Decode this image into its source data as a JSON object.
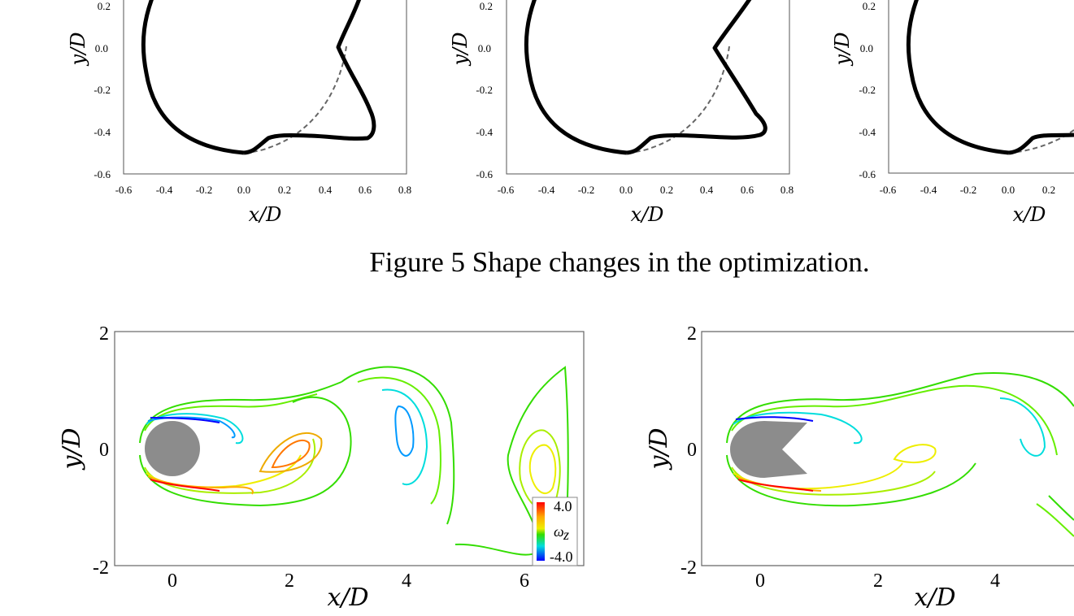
{
  "figure5": {
    "caption": "Figure 5  Shape changes in the optimization.",
    "xlabel": "x/D",
    "ylabel": "y/D",
    "x_ticks": [
      "-0.6",
      "-0.4",
      "-0.2",
      "0.0",
      "0.2",
      "0.4",
      "0.6",
      "0.8"
    ],
    "y_ticks": [
      "0.2",
      "0.0",
      "-0.2",
      "-0.4",
      "-0.6"
    ],
    "panels": [
      "shape-panel-1",
      "shape-panel-2",
      "shape-panel-3"
    ]
  },
  "figure6": {
    "xlabel": "x/D",
    "ylabel": "y/D",
    "x_ticks": [
      "0",
      "2",
      "4",
      "6"
    ],
    "y_ticks": [
      "2",
      "0",
      "-2"
    ],
    "colorbar": {
      "max_label": "4.0",
      "min_label": "-4.0",
      "symbol": "ω",
      "subscript": "z"
    },
    "colors": {
      "positive": "#ff0000",
      "negative": "#0000ff",
      "mid": "#33dd00",
      "body": "#8c8c8c"
    }
  },
  "chart_data": [
    {
      "type": "line",
      "title": "",
      "xlabel": "x/D",
      "ylabel": "y/D",
      "xlim": [
        -0.6,
        0.8
      ],
      "ylim": [
        -0.6,
        0.22
      ],
      "series": [
        {
          "name": "original circle",
          "style": "dashed",
          "points": [
            [
              0.5,
              0.0
            ],
            [
              0.45,
              -0.22
            ],
            [
              0.3,
              -0.4
            ],
            [
              0.0,
              -0.5
            ]
          ]
        },
        {
          "name": "optimized shape (panel 1)",
          "style": "solid",
          "points": [
            [
              0.0,
              -0.5
            ],
            [
              -0.3,
              -0.4
            ],
            [
              -0.48,
              -0.2
            ],
            [
              -0.5,
              0.0
            ],
            [
              -0.45,
              0.2
            ],
            [
              0.48,
              0.03
            ],
            [
              0.46,
              0.0
            ],
            [
              0.55,
              -0.2
            ],
            [
              0.62,
              -0.38
            ],
            [
              0.5,
              -0.43
            ],
            [
              0.15,
              -0.42
            ],
            [
              0.05,
              -0.47
            ],
            [
              0.0,
              -0.5
            ]
          ]
        }
      ]
    },
    {
      "type": "line",
      "title": "",
      "xlabel": "x/D",
      "ylabel": "y/D",
      "xlim": [
        -0.6,
        0.8
      ],
      "ylim": [
        -0.6,
        0.22
      ],
      "series": [
        {
          "name": "original circle",
          "style": "dashed",
          "points": [
            [
              0.5,
              0.0
            ],
            [
              0.45,
              -0.22
            ],
            [
              0.3,
              -0.4
            ],
            [
              0.0,
              -0.5
            ]
          ]
        },
        {
          "name": "optimized shape (panel 2)",
          "style": "solid",
          "points": [
            [
              0.0,
              -0.5
            ],
            [
              -0.3,
              -0.4
            ],
            [
              -0.48,
              -0.2
            ],
            [
              -0.5,
              0.0
            ],
            [
              -0.45,
              0.2
            ],
            [
              0.48,
              0.05
            ],
            [
              0.43,
              0.0
            ],
            [
              0.55,
              -0.18
            ],
            [
              0.7,
              -0.38
            ],
            [
              0.55,
              -0.43
            ],
            [
              0.15,
              -0.42
            ],
            [
              0.05,
              -0.47
            ],
            [
              0.0,
              -0.5
            ]
          ]
        }
      ]
    },
    {
      "type": "line",
      "title": "",
      "xlabel": "x/D",
      "ylabel": "y/D",
      "xlim": [
        -0.6,
        0.8
      ],
      "ylim": [
        -0.6,
        0.22
      ],
      "series": [
        {
          "name": "original circle",
          "style": "dashed",
          "points": [
            [
              0.35,
              -0.38
            ],
            [
              0.2,
              -0.45
            ],
            [
              0.0,
              -0.5
            ]
          ]
        },
        {
          "name": "optimized shape (panel 3)",
          "style": "solid",
          "points": [
            [
              0.0,
              -0.5
            ],
            [
              -0.3,
              -0.4
            ],
            [
              -0.48,
              -0.2
            ],
            [
              -0.5,
              0.0
            ],
            [
              -0.45,
              0.2
            ],
            [
              0.05,
              -0.45
            ],
            [
              0.15,
              -0.41
            ],
            [
              0.35,
              -0.41
            ]
          ]
        }
      ]
    },
    {
      "type": "contour",
      "title": "",
      "xlabel": "x/D",
      "ylabel": "y/D",
      "xlim": [
        -1,
        7
      ],
      "ylim": [
        -2,
        2
      ],
      "colorbar_range": [
        -4.0,
        4.0
      ],
      "note": "vorticity contours around circular cylinder"
    },
    {
      "type": "contour",
      "title": "",
      "xlabel": "x/D",
      "ylabel": "y/D",
      "xlim": [
        -1,
        5.5
      ],
      "ylim": [
        -2,
        2
      ],
      "colorbar_range": [
        -4.0,
        4.0
      ],
      "note": "vorticity contours around optimized shape"
    }
  ]
}
